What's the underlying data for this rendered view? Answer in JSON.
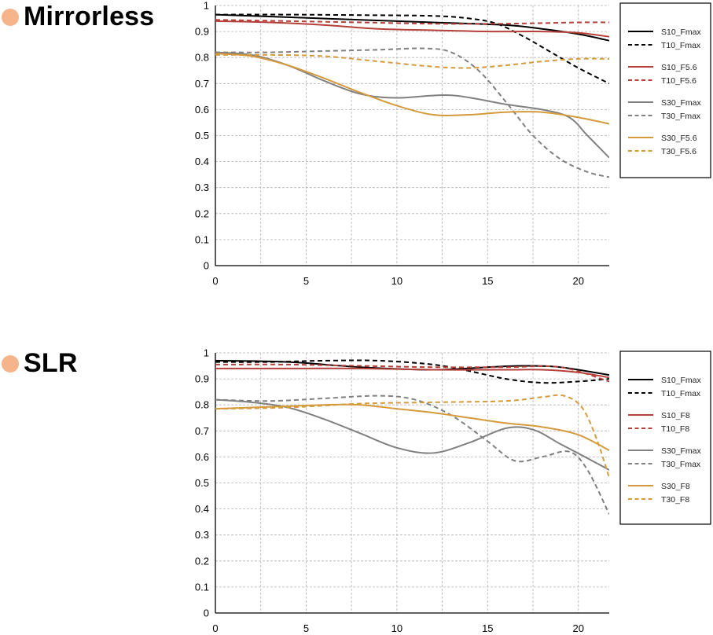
{
  "chart_data": [
    {
      "type": "line",
      "title": "Mirrorless",
      "xlabel": "",
      "ylabel": "",
      "xlim": [
        0,
        21.7
      ],
      "ylim": [
        0,
        1
      ],
      "grid": true,
      "xticks": [
        "0",
        "5",
        "10",
        "15",
        "20"
      ],
      "yticks": [
        "0",
        "0.1",
        "0.2",
        "0.3",
        "0.4",
        "0.5",
        "0.6",
        "0.7",
        "0.8",
        "0.9",
        "1"
      ],
      "legend_position": "right",
      "series": [
        {
          "name": "S10_Fmax",
          "color": "#000000",
          "dash": false,
          "x": [
            0,
            4,
            8,
            12,
            16,
            18,
            20,
            21.7
          ],
          "y": [
            0.965,
            0.955,
            0.945,
            0.935,
            0.925,
            0.91,
            0.89,
            0.865
          ]
        },
        {
          "name": "T10_Fmax",
          "color": "#000000",
          "dash": true,
          "x": [
            0,
            4,
            8,
            12,
            14,
            15.5,
            17,
            18.5,
            20,
            21.7
          ],
          "y": [
            0.965,
            0.965,
            0.963,
            0.96,
            0.95,
            0.93,
            0.88,
            0.82,
            0.76,
            0.7
          ]
        },
        {
          "name": "S10_F5.6",
          "color": "#b5403a",
          "dash": false,
          "x": [
            0,
            3,
            6,
            9,
            12,
            15,
            18,
            20,
            21.7
          ],
          "y": [
            0.94,
            0.935,
            0.925,
            0.91,
            0.905,
            0.9,
            0.9,
            0.895,
            0.88
          ]
        },
        {
          "name": "T10_F5.6",
          "color": "#b5403a",
          "dash": true,
          "x": [
            0,
            4,
            8,
            12,
            16,
            20,
            21.7
          ],
          "y": [
            0.945,
            0.94,
            0.935,
            0.93,
            0.93,
            0.935,
            0.935
          ]
        },
        {
          "name": "S30_Fmax",
          "color": "#808080",
          "dash": false,
          "x": [
            0,
            2,
            4,
            6,
            8,
            10,
            13,
            16,
            18,
            19.5,
            20.5,
            21.7
          ],
          "y": [
            0.82,
            0.81,
            0.77,
            0.71,
            0.66,
            0.645,
            0.655,
            0.62,
            0.6,
            0.57,
            0.5,
            0.415
          ]
        },
        {
          "name": "T30_Fmax",
          "color": "#808080",
          "dash": true,
          "x": [
            0,
            3,
            6,
            9,
            11.5,
            13,
            14.5,
            16,
            17.5,
            19,
            20.5,
            21.7
          ],
          "y": [
            0.82,
            0.82,
            0.825,
            0.83,
            0.835,
            0.82,
            0.75,
            0.63,
            0.5,
            0.41,
            0.36,
            0.34
          ]
        },
        {
          "name": "S30_F5.6",
          "color": "#d49a3c",
          "dash": false,
          "x": [
            0,
            2,
            4,
            6,
            8,
            10,
            12,
            14,
            16,
            18,
            20,
            21.7
          ],
          "y": [
            0.815,
            0.805,
            0.77,
            0.72,
            0.665,
            0.615,
            0.58,
            0.58,
            0.59,
            0.59,
            0.57,
            0.545
          ]
        },
        {
          "name": "T30_F5.6",
          "color": "#d49a3c",
          "dash": true,
          "x": [
            0,
            3,
            6,
            9,
            12,
            14,
            16,
            18,
            20,
            21.7
          ],
          "y": [
            0.81,
            0.81,
            0.805,
            0.785,
            0.765,
            0.76,
            0.77,
            0.785,
            0.795,
            0.795
          ]
        }
      ]
    },
    {
      "type": "line",
      "title": "SLR",
      "xlabel": "",
      "ylabel": "",
      "xlim": [
        0,
        21.7
      ],
      "ylim": [
        0,
        1
      ],
      "grid": true,
      "xticks": [
        "0",
        "5",
        "10",
        "15",
        "20"
      ],
      "yticks": [
        "0",
        "0.1",
        "0.2",
        "0.3",
        "0.4",
        "0.5",
        "0.6",
        "0.7",
        "0.8",
        "0.9",
        "1"
      ],
      "legend_position": "right",
      "series": [
        {
          "name": "S10_Fmax",
          "color": "#000000",
          "dash": false,
          "x": [
            0,
            4,
            8,
            12,
            15,
            17,
            19,
            21.7
          ],
          "y": [
            0.97,
            0.965,
            0.945,
            0.935,
            0.945,
            0.95,
            0.945,
            0.915
          ]
        },
        {
          "name": "T10_Fmax",
          "color": "#000000",
          "dash": true,
          "x": [
            0,
            3,
            6,
            9,
            12,
            14,
            16,
            18,
            20,
            21.7
          ],
          "y": [
            0.965,
            0.965,
            0.97,
            0.97,
            0.955,
            0.93,
            0.9,
            0.885,
            0.89,
            0.9
          ]
        },
        {
          "name": "S10_F8",
          "color": "#b5403a",
          "dash": false,
          "x": [
            0,
            4,
            8,
            12,
            16,
            18,
            20,
            21.7
          ],
          "y": [
            0.94,
            0.94,
            0.94,
            0.935,
            0.935,
            0.935,
            0.925,
            0.905
          ]
        },
        {
          "name": "T10_F8",
          "color": "#b5403a",
          "dash": true,
          "x": [
            0,
            4,
            8,
            12,
            16,
            19,
            21.7
          ],
          "y": [
            0.955,
            0.955,
            0.95,
            0.945,
            0.945,
            0.945,
            0.89
          ]
        },
        {
          "name": "S30_Fmax",
          "color": "#808080",
          "dash": false,
          "x": [
            0,
            2,
            4,
            6,
            8,
            10,
            12,
            14,
            16,
            17.5,
            19,
            20.5,
            21.7
          ],
          "y": [
            0.82,
            0.81,
            0.79,
            0.745,
            0.69,
            0.635,
            0.615,
            0.655,
            0.71,
            0.705,
            0.65,
            0.595,
            0.55
          ]
        },
        {
          "name": "T30_Fmax",
          "color": "#808080",
          "dash": true,
          "x": [
            0,
            3,
            6,
            9,
            11,
            13,
            15,
            16.5,
            18,
            19.5,
            20.5,
            21.7
          ],
          "y": [
            0.82,
            0.815,
            0.825,
            0.835,
            0.82,
            0.76,
            0.66,
            0.585,
            0.6,
            0.62,
            0.55,
            0.38
          ]
        },
        {
          "name": "S30_F8",
          "color": "#d49a3c",
          "dash": false,
          "x": [
            0,
            2,
            4,
            6,
            8,
            10,
            12,
            14,
            16,
            18,
            20,
            21.7
          ],
          "y": [
            0.785,
            0.79,
            0.795,
            0.8,
            0.8,
            0.785,
            0.77,
            0.75,
            0.73,
            0.715,
            0.685,
            0.625
          ]
        },
        {
          "name": "T30_F8",
          "color": "#d49a3c",
          "dash": true,
          "x": [
            0,
            4,
            8,
            12,
            16,
            18,
            19.2,
            20.2,
            21,
            21.7
          ],
          "y": [
            0.785,
            0.79,
            0.805,
            0.81,
            0.815,
            0.83,
            0.835,
            0.79,
            0.67,
            0.52
          ]
        }
      ]
    }
  ]
}
